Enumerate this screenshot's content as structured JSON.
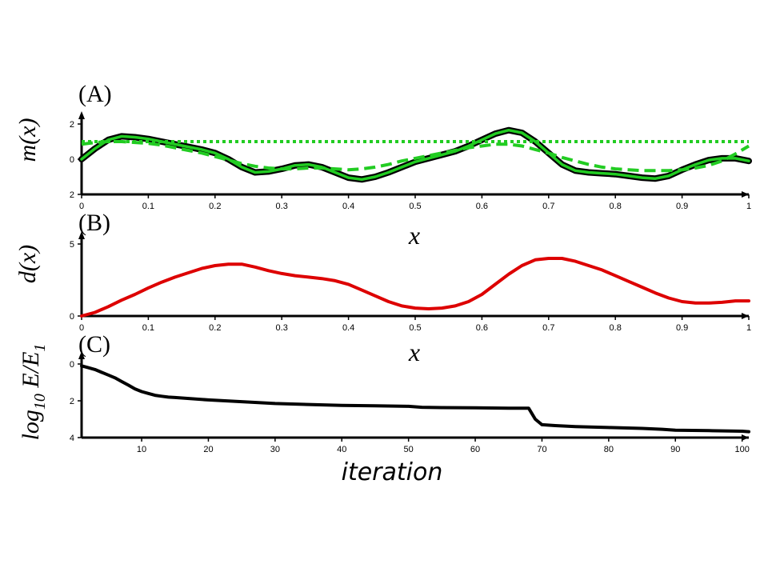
{
  "chart_data": [
    {
      "type": "line",
      "panel_label": "(A)",
      "ylabel": "m(x)",
      "xlabel": "x",
      "xlim": [
        0,
        1
      ],
      "ylim": [
        -2,
        2
      ],
      "x_ticks": [
        "0",
        "0.1",
        "0.2",
        "0.3",
        "0.4",
        "0.5",
        "0.6",
        "0.7",
        "0.8",
        "0.9",
        "1"
      ],
      "y_ticks": [
        "2",
        "0",
        "2"
      ],
      "grid": false,
      "series": [
        {
          "style": "solid-black-green-core",
          "color": "#000000",
          "core_color": "#22cc22",
          "x": [
            0,
            0.02,
            0.04,
            0.06,
            0.08,
            0.1,
            0.12,
            0.14,
            0.16,
            0.18,
            0.2,
            0.22,
            0.24,
            0.26,
            0.28,
            0.3,
            0.32,
            0.34,
            0.36,
            0.38,
            0.4,
            0.42,
            0.44,
            0.46,
            0.48,
            0.5,
            0.52,
            0.54,
            0.56,
            0.58,
            0.6,
            0.62,
            0.64,
            0.66,
            0.68,
            0.7,
            0.72,
            0.74,
            0.76,
            0.78,
            0.8,
            0.82,
            0.84,
            0.86,
            0.88,
            0.9,
            0.92,
            0.94,
            0.96,
            0.98,
            1.0
          ],
          "values": [
            0.0,
            0.6,
            1.1,
            1.3,
            1.25,
            1.15,
            1.0,
            0.85,
            0.7,
            0.55,
            0.35,
            0.0,
            -0.45,
            -0.75,
            -0.7,
            -0.55,
            -0.35,
            -0.3,
            -0.45,
            -0.75,
            -1.05,
            -1.15,
            -1.0,
            -0.75,
            -0.45,
            -0.15,
            0.05,
            0.25,
            0.45,
            0.75,
            1.1,
            1.45,
            1.65,
            1.5,
            1.0,
            0.35,
            -0.3,
            -0.65,
            -0.75,
            -0.8,
            -0.85,
            -0.95,
            -1.05,
            -1.1,
            -0.95,
            -0.6,
            -0.3,
            -0.05,
            0.05,
            0.05,
            -0.1
          ]
        },
        {
          "style": "dashed",
          "color": "#22cc22",
          "x": [
            0,
            0.02,
            0.04,
            0.06,
            0.08,
            0.1,
            0.12,
            0.14,
            0.16,
            0.18,
            0.2,
            0.22,
            0.24,
            0.26,
            0.28,
            0.3,
            0.32,
            0.34,
            0.36,
            0.38,
            0.4,
            0.42,
            0.44,
            0.46,
            0.48,
            0.5,
            0.52,
            0.54,
            0.56,
            0.58,
            0.6,
            0.62,
            0.64,
            0.66,
            0.68,
            0.7,
            0.72,
            0.74,
            0.76,
            0.78,
            0.8,
            0.82,
            0.84,
            0.86,
            0.88,
            0.9,
            0.92,
            0.94,
            0.96,
            0.98,
            1.0
          ],
          "values": [
            0.85,
            0.95,
            1.0,
            1.0,
            0.95,
            0.9,
            0.8,
            0.65,
            0.5,
            0.35,
            0.15,
            -0.05,
            -0.25,
            -0.4,
            -0.5,
            -0.55,
            -0.55,
            -0.5,
            -0.5,
            -0.55,
            -0.6,
            -0.55,
            -0.45,
            -0.3,
            -0.1,
            0.05,
            0.2,
            0.35,
            0.5,
            0.65,
            0.75,
            0.85,
            0.85,
            0.75,
            0.55,
            0.35,
            0.1,
            -0.1,
            -0.3,
            -0.45,
            -0.55,
            -0.6,
            -0.65,
            -0.65,
            -0.65,
            -0.6,
            -0.5,
            -0.35,
            -0.1,
            0.3,
            0.75
          ]
        },
        {
          "style": "dotted",
          "color": "#22cc22",
          "x": [
            0,
            1
          ],
          "values": [
            1.0,
            1.0
          ]
        }
      ]
    },
    {
      "type": "line",
      "panel_label": "(B)",
      "ylabel": "d(x)",
      "xlabel": "x",
      "xlim": [
        0,
        1
      ],
      "ylim": [
        0,
        5
      ],
      "x_ticks": [
        "0",
        "0.1",
        "0.2",
        "0.3",
        "0.4",
        "0.5",
        "0.6",
        "0.7",
        "0.8",
        "0.9",
        "1"
      ],
      "y_ticks": [
        "5",
        "0"
      ],
      "grid": false,
      "series": [
        {
          "style": "solid",
          "color": "#dd0000",
          "x": [
            0,
            0.02,
            0.04,
            0.06,
            0.08,
            0.1,
            0.12,
            0.14,
            0.16,
            0.18,
            0.2,
            0.22,
            0.24,
            0.26,
            0.28,
            0.3,
            0.32,
            0.34,
            0.36,
            0.38,
            0.4,
            0.42,
            0.44,
            0.46,
            0.48,
            0.5,
            0.52,
            0.54,
            0.56,
            0.58,
            0.6,
            0.62,
            0.64,
            0.66,
            0.68,
            0.7,
            0.72,
            0.74,
            0.76,
            0.78,
            0.8,
            0.82,
            0.84,
            0.86,
            0.88,
            0.9,
            0.92,
            0.94,
            0.96,
            0.98,
            1.0
          ],
          "values": [
            0.0,
            0.25,
            0.65,
            1.1,
            1.5,
            1.95,
            2.35,
            2.7,
            3.0,
            3.3,
            3.5,
            3.6,
            3.6,
            3.4,
            3.15,
            2.95,
            2.8,
            2.7,
            2.6,
            2.45,
            2.2,
            1.8,
            1.4,
            1.0,
            0.7,
            0.55,
            0.5,
            0.55,
            0.7,
            1.0,
            1.5,
            2.2,
            2.9,
            3.5,
            3.9,
            4.0,
            4.0,
            3.8,
            3.5,
            3.2,
            2.8,
            2.4,
            2.0,
            1.6,
            1.25,
            1.0,
            0.9,
            0.9,
            0.95,
            1.05,
            1.05
          ]
        }
      ]
    },
    {
      "type": "line",
      "panel_label": "(C)",
      "ylabel": "log10 E/E1",
      "ylabel_parts": {
        "prefix": "log",
        "sub1": "10",
        "mid": " E/E",
        "sub2": "1"
      },
      "xlabel": "iteration",
      "xlim": [
        1,
        101
      ],
      "ylim": [
        -4,
        0
      ],
      "x_ticks": [
        "10",
        "20",
        "30",
        "40",
        "50",
        "60",
        "70",
        "80",
        "90",
        "100"
      ],
      "y_ticks": [
        "0",
        "2",
        "4"
      ],
      "grid": false,
      "series": [
        {
          "style": "solid",
          "color": "#000000",
          "x": [
            1,
            2,
            3,
            4,
            5,
            6,
            7,
            8,
            9,
            10,
            11,
            12,
            13,
            14,
            15,
            20,
            25,
            30,
            35,
            40,
            45,
            50,
            52,
            55,
            60,
            65,
            68,
            69,
            70,
            72,
            75,
            80,
            85,
            88,
            90,
            95,
            100,
            101
          ],
          "values": [
            -0.1,
            -0.2,
            -0.3,
            -0.45,
            -0.6,
            -0.75,
            -0.95,
            -1.15,
            -1.35,
            -1.5,
            -1.6,
            -1.7,
            -1.75,
            -1.8,
            -1.82,
            -1.95,
            -2.05,
            -2.15,
            -2.2,
            -2.25,
            -2.27,
            -2.3,
            -2.35,
            -2.37,
            -2.38,
            -2.4,
            -2.4,
            -3.0,
            -3.3,
            -3.35,
            -3.4,
            -3.45,
            -3.5,
            -3.55,
            -3.6,
            -3.62,
            -3.65,
            -3.68
          ]
        }
      ]
    }
  ]
}
